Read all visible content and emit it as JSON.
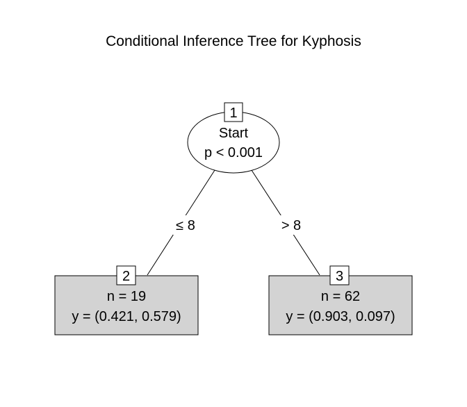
{
  "title": "Conditional Inference Tree for Kyphosis",
  "tree": {
    "inner_node": {
      "id": "1",
      "variable": "Start",
      "p_value": "p < 0.001"
    },
    "edges": [
      {
        "label": "≤ 8",
        "from": "1",
        "to": "2"
      },
      {
        "label": "> 8",
        "from": "1",
        "to": "3"
      }
    ],
    "terminal_nodes": [
      {
        "id": "2",
        "n": "n = 19",
        "y": "y = (0.421, 0.579)"
      },
      {
        "id": "3",
        "n": "n = 62",
        "y": "y = (0.903, 0.097)"
      }
    ]
  },
  "colors": {
    "terminal_fill": "#d3d3d3",
    "stroke": "#000000",
    "background": "#ffffff"
  }
}
